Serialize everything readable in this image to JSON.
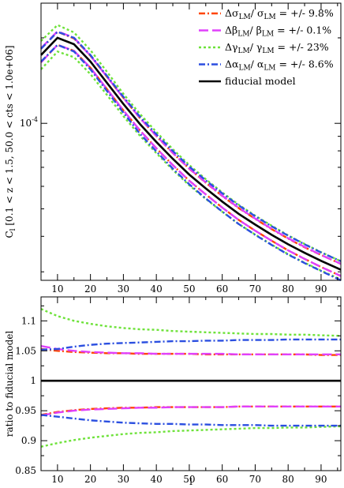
{
  "chart_data": [
    {
      "type": "line",
      "xlabel": "",
      "ylabel": "C_l [0.1 < z < 1.5, 50.0 < cts < 1.0e+06]",
      "ylabel_main": "C",
      "ylabel_sub": "l",
      "ylabel_rest": " [0.1 < z < 1.5, 50.0 < cts < 1.0e+06]",
      "yscale": "log",
      "xlim": [
        5,
        96
      ],
      "ylim": [
        2.8e-05,
        0.000265
      ],
      "xticks": [
        "10",
        "20",
        "30",
        "40",
        "50",
        "60",
        "70",
        "80",
        "90"
      ],
      "yticks": [
        {
          "value": 0.0001,
          "label": "10",
          "exp": "-4"
        }
      ],
      "legend_position": "top-right",
      "legend": [
        {
          "text": "Δσ_LM / σ_LM = +/- 9.8%",
          "main": "Δσ",
          "sub1": "LM",
          "mid": "/ σ",
          "sub2": "LM",
          "tail": "= +/- 9.8%",
          "color": "#ff4500",
          "dash": "8 3 2 3"
        },
        {
          "text": "Δβ_LM / β_LM = +/- 0.1%",
          "main": "Δβ",
          "sub1": "LM",
          "mid": "/ β",
          "sub2": "LM",
          "tail": "= +/- 0.1%",
          "color": "#e040fb",
          "dash": "12 5"
        },
        {
          "text": "Δγ_LM / γ_LM = +/- 23%",
          "main": "Δγ",
          "sub1": "LM",
          "mid": "/ γ",
          "sub2": "LM",
          "tail": "= +/- 23%",
          "color": "#6ee23a",
          "dash": "3 3"
        },
        {
          "text": "Δα_LM / α_LM = +/- 8.6%",
          "main": "Δα",
          "sub1": "LM",
          "mid": "/ α",
          "sub2": "LM",
          "tail": "= +/- 8.6%",
          "color": "#2b4fe0",
          "dash": "8 3 2 3"
        },
        {
          "text": "fiducial model",
          "main": "fiducial model",
          "color": "#000000",
          "dash": ""
        }
      ],
      "x": [
        5,
        10,
        15,
        20,
        25,
        30,
        35,
        40,
        45,
        50,
        55,
        60,
        65,
        70,
        75,
        80,
        85,
        90,
        96
      ],
      "series": [
        {
          "name": "fiducial model",
          "color": "#000000",
          "dash": "",
          "values": [
            0.000174,
            0.0002,
            0.00019,
            0.000165,
            0.000139,
            0.000117,
            9.95e-05,
            8.6e-05,
            7.5e-05,
            6.6e-05,
            5.9e-05,
            5.3e-05,
            4.8e-05,
            4.4e-05,
            4.05e-05,
            3.75e-05,
            3.5e-05,
            3.28e-05,
            3.05e-05
          ]
        },
        {
          "name": "Δσ +",
          "color": "#ff4500",
          "dash": "8 3 2 3",
          "values": [
            0.000183,
            0.00021,
            0.000199,
            0.000173,
            0.000146,
            0.000123,
            0.0001044,
            9.02e-05,
            7.86e-05,
            6.92e-05,
            6.18e-05,
            5.55e-05,
            5.03e-05,
            4.61e-05,
            4.24e-05,
            3.93e-05,
            3.66e-05,
            3.44e-05,
            3.2e-05
          ]
        },
        {
          "name": "Δσ −",
          "color": "#ff4500",
          "dash": "8 3 2 3",
          "values": [
            0.000164,
            0.000189,
            0.00018,
            0.000157,
            0.000132,
            0.000111,
            9.45e-05,
            8.17e-05,
            7.13e-05,
            6.28e-05,
            5.62e-05,
            5.05e-05,
            4.57e-05,
            4.19e-05,
            3.86e-05,
            3.57e-05,
            3.33e-05,
            3.12e-05,
            2.9e-05
          ]
        },
        {
          "name": "Δβ +",
          "color": "#e040fb",
          "dash": "12 5",
          "values": [
            0.000184,
            0.000211,
            0.0002,
            0.000173,
            0.000146,
            0.000123,
            0.0001045,
            9.03e-05,
            7.87e-05,
            6.93e-05,
            6.19e-05,
            5.56e-05,
            5.04e-05,
            4.62e-05,
            4.25e-05,
            3.94e-05,
            3.67e-05,
            3.44e-05,
            3.2e-05
          ]
        },
        {
          "name": "Δβ −",
          "color": "#e040fb",
          "dash": "12 5",
          "values": [
            0.000164,
            0.000189,
            0.00018,
            0.000157,
            0.000132,
            0.000111,
            9.45e-05,
            8.17e-05,
            7.13e-05,
            6.28e-05,
            5.62e-05,
            5.05e-05,
            4.57e-05,
            4.19e-05,
            3.86e-05,
            3.57e-05,
            3.33e-05,
            3.12e-05,
            2.9e-05
          ]
        },
        {
          "name": "Δγ +",
          "color": "#6ee23a",
          "dash": "3 3",
          "values": [
            0.000195,
            0.000222,
            0.000209,
            0.000181,
            0.000152,
            0.000127,
            0.000108,
            9.32e-05,
            8.11e-05,
            7.13e-05,
            6.36e-05,
            5.71e-05,
            5.17e-05,
            4.73e-05,
            4.36e-05,
            4.03e-05,
            3.76e-05,
            3.52e-05,
            3.27e-05
          ]
        },
        {
          "name": "Δγ −",
          "color": "#6ee23a",
          "dash": "3 3",
          "values": [
            0.000155,
            0.000179,
            0.000171,
            0.000149,
            0.000126,
            0.000106,
            9.05e-05,
            7.85e-05,
            6.86e-05,
            6.05e-05,
            5.42e-05,
            4.88e-05,
            4.42e-05,
            4.06e-05,
            3.74e-05,
            3.46e-05,
            3.23e-05,
            3.03e-05,
            2.82e-05
          ]
        },
        {
          "name": "Δα +",
          "color": "#2b4fe0",
          "dash": "8 3 2 3",
          "values": [
            0.000183,
            0.00021,
            0.0002,
            0.000174,
            0.000147,
            0.000124,
            0.0001056,
            9.15e-05,
            7.99e-05,
            7.04e-05,
            6.3e-05,
            5.67e-05,
            5.14e-05,
            4.71e-05,
            4.34e-05,
            4.02e-05,
            3.75e-05,
            3.51e-05,
            3.27e-05
          ]
        },
        {
          "name": "Δα −",
          "color": "#2b4fe0",
          "dash": "8 3 2 3",
          "values": [
            0.000165,
            0.000189,
            0.000179,
            0.000155,
            0.00013,
            0.000109,
            9.2e-05,
            7.96e-05,
            6.93e-05,
            6.1e-05,
            5.44e-05,
            4.89e-05,
            4.42e-05,
            4.05e-05,
            3.73e-05,
            3.45e-05,
            3.22e-05,
            3.02e-05,
            2.8e-05
          ]
        }
      ]
    },
    {
      "type": "line",
      "xlabel": "l",
      "ylabel": "ratio to fiducial model",
      "yscale": "linear",
      "xlim": [
        5,
        96
      ],
      "ylim": [
        0.85,
        1.14
      ],
      "xticks": [
        "10",
        "20",
        "30",
        "40",
        "50",
        "60",
        "70",
        "80",
        "90"
      ],
      "yticks": [
        "0.85",
        "0.9",
        "0.95",
        "1",
        "1.05",
        "1.1"
      ],
      "x": [
        5,
        10,
        15,
        20,
        25,
        30,
        35,
        40,
        45,
        50,
        55,
        60,
        65,
        70,
        75,
        80,
        85,
        90,
        96
      ],
      "series": [
        {
          "name": "fiducial model",
          "color": "#000000",
          "dash": "",
          "values": [
            1,
            1,
            1,
            1,
            1,
            1,
            1,
            1,
            1,
            1,
            1,
            1,
            1,
            1,
            1,
            1,
            1,
            1,
            1
          ]
        },
        {
          "name": "Δσ +",
          "color": "#ff4500",
          "dash": "8 3 2 3",
          "values": [
            1.053,
            1.05,
            1.048,
            1.047,
            1.046,
            1.046,
            1.045,
            1.045,
            1.045,
            1.045,
            1.044,
            1.044,
            1.044,
            1.044,
            1.044,
            1.044,
            1.044,
            1.043,
            1.043
          ]
        },
        {
          "name": "Δσ −",
          "color": "#ff4500",
          "dash": "8 3 2 3",
          "values": [
            0.943,
            0.948,
            0.951,
            0.953,
            0.954,
            0.955,
            0.955,
            0.956,
            0.956,
            0.956,
            0.956,
            0.956,
            0.957,
            0.957,
            0.957,
            0.957,
            0.957,
            0.957,
            0.957
          ]
        },
        {
          "name": "Δβ +",
          "color": "#e040fb",
          "dash": "12 5",
          "values": [
            1.058,
            1.053,
            1.05,
            1.048,
            1.047,
            1.046,
            1.046,
            1.045,
            1.045,
            1.045,
            1.045,
            1.045,
            1.044,
            1.044,
            1.044,
            1.044,
            1.044,
            1.044,
            1.044
          ]
        },
        {
          "name": "Δβ −",
          "color": "#e040fb",
          "dash": "12 5",
          "values": [
            0.942,
            0.947,
            0.95,
            0.952,
            0.953,
            0.954,
            0.955,
            0.955,
            0.956,
            0.956,
            0.956,
            0.956,
            0.957,
            0.957,
            0.957,
            0.957,
            0.957,
            0.957,
            0.957
          ]
        },
        {
          "name": "Δγ +",
          "color": "#6ee23a",
          "dash": "3 3",
          "values": [
            1.12,
            1.108,
            1.1,
            1.095,
            1.091,
            1.088,
            1.086,
            1.085,
            1.083,
            1.082,
            1.081,
            1.08,
            1.079,
            1.078,
            1.078,
            1.077,
            1.077,
            1.076,
            1.075
          ]
        },
        {
          "name": "Δγ −",
          "color": "#6ee23a",
          "dash": "3 3",
          "values": [
            0.89,
            0.896,
            0.901,
            0.905,
            0.908,
            0.911,
            0.913,
            0.914,
            0.916,
            0.917,
            0.918,
            0.919,
            0.92,
            0.921,
            0.921,
            0.922,
            0.922,
            0.923,
            0.924
          ]
        },
        {
          "name": "Δα +",
          "color": "#2b4fe0",
          "dash": "8 3 2 3",
          "values": [
            1.052,
            1.053,
            1.057,
            1.06,
            1.062,
            1.063,
            1.064,
            1.065,
            1.066,
            1.066,
            1.067,
            1.067,
            1.068,
            1.068,
            1.068,
            1.069,
            1.069,
            1.069,
            1.069
          ]
        },
        {
          "name": "Δα −",
          "color": "#2b4fe0",
          "dash": "8 3 2 3",
          "values": [
            0.943,
            0.94,
            0.937,
            0.934,
            0.932,
            0.93,
            0.929,
            0.928,
            0.928,
            0.927,
            0.927,
            0.926,
            0.926,
            0.926,
            0.925,
            0.925,
            0.925,
            0.925,
            0.925
          ]
        }
      ]
    }
  ]
}
